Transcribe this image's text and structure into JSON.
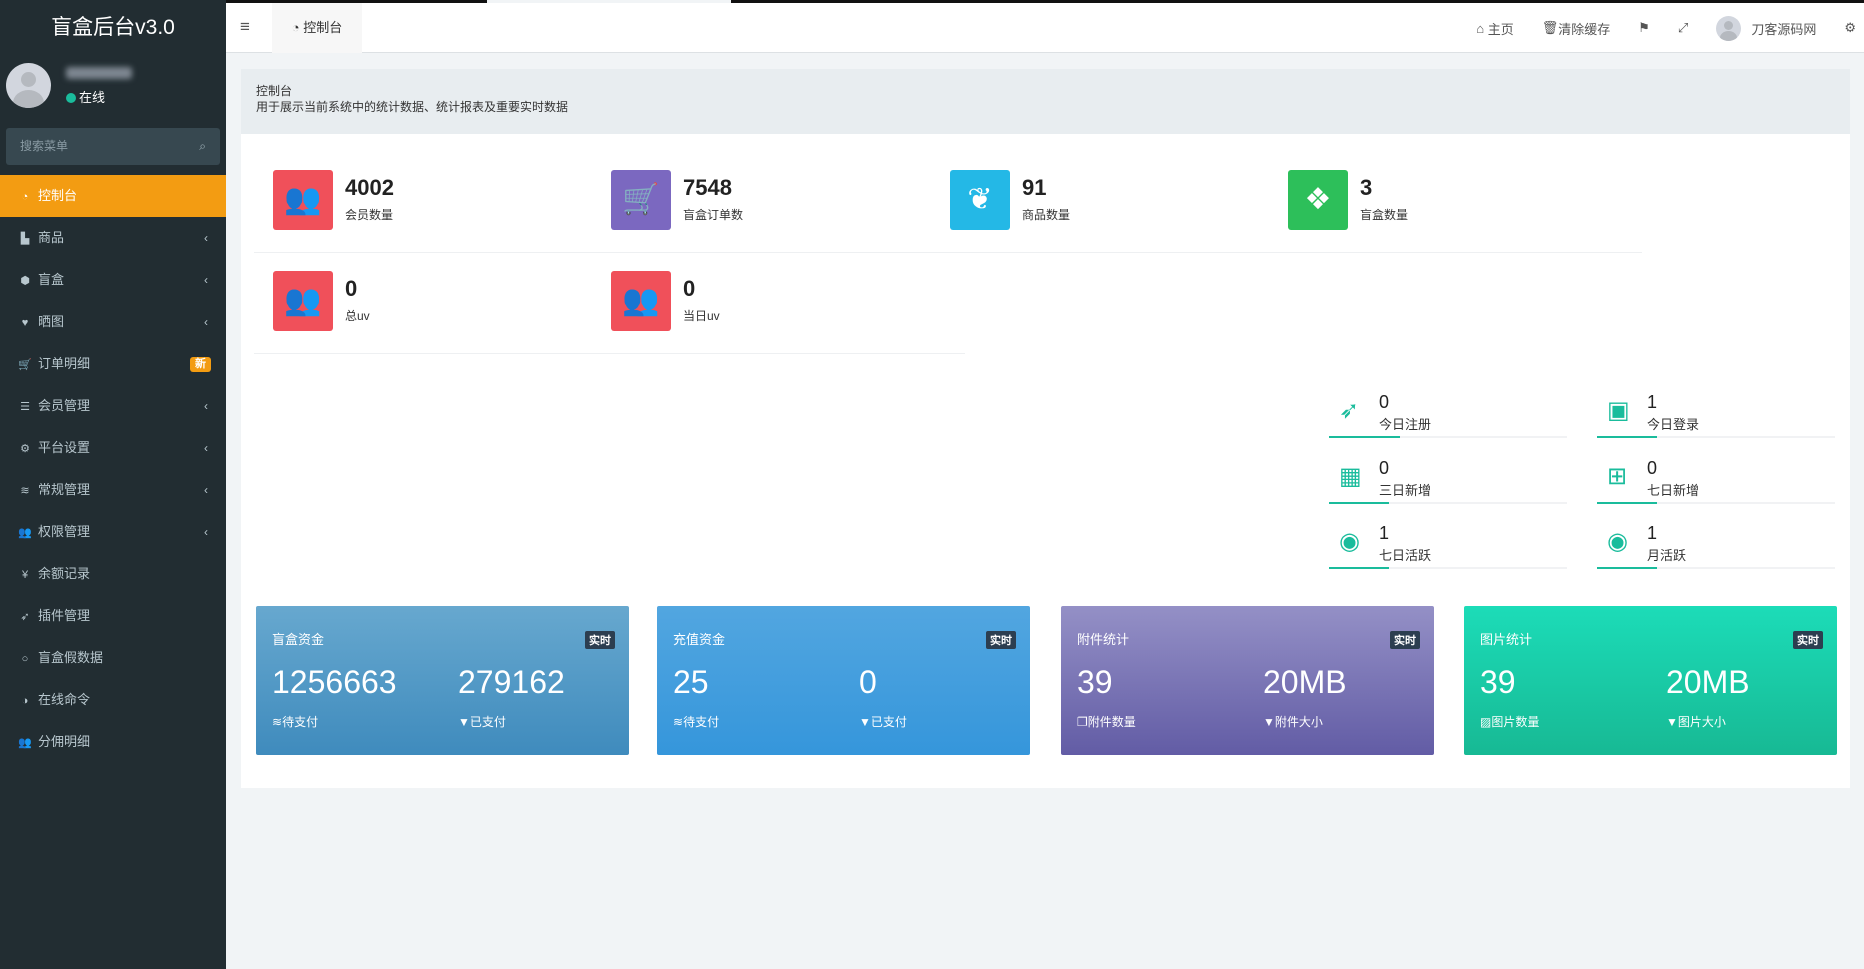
{
  "app": {
    "title": "盲盒后台v3.0",
    "status": "在线",
    "search_placeholder": "搜索菜单"
  },
  "sidebar": {
    "items": [
      {
        "label": "控制台",
        "icon": "dashboard-icon",
        "glyph": "◔",
        "active": true
      },
      {
        "label": "商品",
        "icon": "shopping-bag-icon",
        "glyph": "▙",
        "chevron": true
      },
      {
        "label": "盲盒",
        "icon": "cube-icon",
        "glyph": "⬢",
        "chevron": true
      },
      {
        "label": "晒图",
        "icon": "heart-icon",
        "glyph": "♥",
        "chevron": true
      },
      {
        "label": "订单明细",
        "icon": "cart-icon",
        "glyph": "🛒",
        "badge": "新"
      },
      {
        "label": "会员管理",
        "icon": "list-icon",
        "glyph": "☰",
        "chevron": true
      },
      {
        "label": "平台设置",
        "icon": "gear-icon",
        "glyph": "⚙",
        "chevron": true
      },
      {
        "label": "常规管理",
        "icon": "database-icon",
        "glyph": "≋",
        "chevron": true
      },
      {
        "label": "权限管理",
        "icon": "users-icon",
        "glyph": "👥",
        "chevron": true
      },
      {
        "label": "余额记录",
        "icon": "yen-icon",
        "glyph": "¥"
      },
      {
        "label": "插件管理",
        "icon": "rocket-icon",
        "glyph": "➶"
      },
      {
        "label": "盲盒假数据",
        "icon": "circle-icon",
        "glyph": "○"
      },
      {
        "label": "在线命令",
        "icon": "adjust-icon",
        "glyph": "◑"
      },
      {
        "label": "分佣明细",
        "icon": "users-icon",
        "glyph": "👥"
      }
    ]
  },
  "header": {
    "tab": "控制台",
    "home": "主页",
    "clear_cache": "清除缓存",
    "username": "刀客源码网"
  },
  "page": {
    "title": "控制台",
    "description": "用于展示当前系统中的统计数据、统计报表及重要实时数据"
  },
  "stats": [
    {
      "value": "4002",
      "label": "会员数量",
      "color": "#f0505a",
      "icon": "users-icon",
      "glyph": "👥"
    },
    {
      "value": "7548",
      "label": "盲盒订单数",
      "color": "#7b68c0",
      "icon": "cart-icon",
      "glyph": "🛒"
    },
    {
      "value": "91",
      "label": "商品数量",
      "color": "#24b8e6",
      "icon": "leaf-icon",
      "glyph": "❦"
    },
    {
      "value": "3",
      "label": "盲盒数量",
      "color": "#2dbf5a",
      "icon": "dropbox-icon",
      "glyph": "❖"
    },
    {
      "value": "0",
      "label": "总uv",
      "color": "#f0505a",
      "icon": "users-icon",
      "glyph": "👥"
    },
    {
      "value": "0",
      "label": "当日uv",
      "color": "#f0505a",
      "icon": "users-icon",
      "glyph": "👥"
    }
  ],
  "mini_stats": [
    {
      "value": "0",
      "label": "今日注册",
      "icon": "rocket-icon",
      "glyph": "➶",
      "progress": 0.3
    },
    {
      "value": "1",
      "label": "今日登录",
      "icon": "id-card-icon",
      "glyph": "▣",
      "progress": 0.25
    },
    {
      "value": "0",
      "label": "三日新增",
      "icon": "calendar-icon",
      "glyph": "▦",
      "progress": 0.25
    },
    {
      "value": "0",
      "label": "七日新增",
      "icon": "calendar-plus-icon",
      "glyph": "⊞",
      "progress": 0.25
    },
    {
      "value": "1",
      "label": "七日活跃",
      "icon": "user-circle-icon",
      "glyph": "◉",
      "progress": 0.25
    },
    {
      "value": "1",
      "label": "月活跃",
      "icon": "user-circle-icon",
      "glyph": "◉",
      "progress": 0.25
    }
  ],
  "cards": [
    {
      "title": "盲盒资金",
      "badge": "实时",
      "v1": "1256663",
      "l1": "待支付",
      "i1": "database-icon",
      "v2": "279162",
      "l2": "已支付",
      "i2": "filter-icon",
      "colors": [
        "#67a8cf",
        "#3f8bbd"
      ]
    },
    {
      "title": "充值资金",
      "badge": "实时",
      "v1": "25",
      "l1": "待支付",
      "i1": "database-icon",
      "v2": "0",
      "l2": "已支付",
      "i2": "filter-icon",
      "colors": [
        "#52a6e0",
        "#3596db"
      ]
    },
    {
      "title": "附件统计",
      "badge": "实时",
      "v1": "39",
      "l1": "附件数量",
      "i1": "files-icon",
      "v2": "20MB",
      "l2": "附件大小",
      "i2": "filter-icon",
      "colors": [
        "#9490c6",
        "#625ca5"
      ]
    },
    {
      "title": "图片统计",
      "badge": "实时",
      "v1": "39",
      "l1": "图片数量",
      "i1": "image-icon",
      "v2": "20MB",
      "l2": "图片大小",
      "i2": "filter-icon",
      "colors": [
        "#1cdcb8",
        "#17b994"
      ]
    }
  ]
}
